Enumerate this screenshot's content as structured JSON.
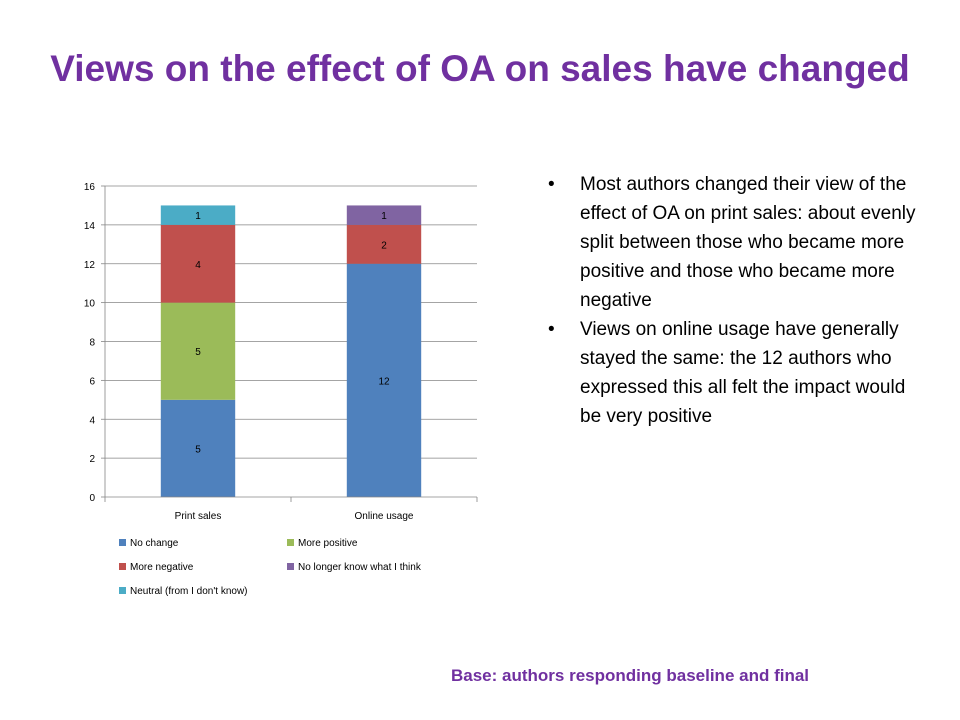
{
  "slide": {
    "title": "Views on the effect of OA on sales have changed",
    "bullets": [
      "Most authors changed their view of the effect of OA on print sales: about evenly split between those who became more positive and those who became more negative",
      "Views on online usage have generally stayed the same: the 12 authors who expressed this all felt the impact would be very positive"
    ],
    "bullet_symbol": "•",
    "base_note": "Base: authors responding baseline and final"
  },
  "chart_data": {
    "type": "bar",
    "stacked": true,
    "categories": [
      "Print sales",
      "Online usage"
    ],
    "series": [
      {
        "name": "No change",
        "color": "#4f81bd",
        "values": [
          5,
          12
        ]
      },
      {
        "name": "More positive",
        "color": "#9bbb59",
        "values": [
          5,
          0
        ]
      },
      {
        "name": "More negative",
        "color": "#c0504d",
        "values": [
          4,
          2
        ]
      },
      {
        "name": "No longer know what I think",
        "color": "#8064a2",
        "values": [
          0,
          1
        ]
      },
      {
        "name": "Neutral (from I don't know)",
        "color": "#4bacc6",
        "values": [
          1,
          0
        ]
      }
    ],
    "ylim": [
      0,
      16
    ],
    "yticks": [
      0,
      2,
      4,
      6,
      8,
      10,
      12,
      14,
      16
    ],
    "grid": true,
    "data_labels": true,
    "legend_position": "bottom"
  }
}
